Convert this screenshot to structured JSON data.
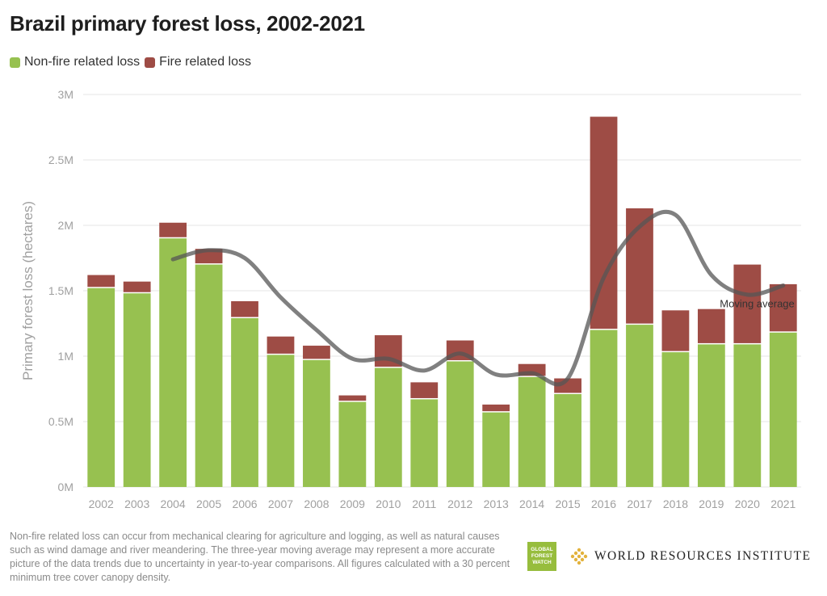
{
  "title": "Brazil primary forest loss, 2002-2021",
  "legend": {
    "non_fire_label": "Non-fire related loss",
    "fire_label": "Fire related loss"
  },
  "colors": {
    "non_fire": "#97c150",
    "fire": "#9e4c45",
    "moving_average": "#555555",
    "grid": "#e6e6e6",
    "axis_text": "#a0a0a0"
  },
  "chart_data": {
    "type": "bar",
    "stacked": true,
    "ylabel": "Primary forest loss (hectares)",
    "ylim": [
      0,
      3000000
    ],
    "yticks": [
      0,
      500000,
      1000000,
      1500000,
      2000000,
      2500000,
      3000000
    ],
    "ytick_labels": [
      "0M",
      "0.5M",
      "1M",
      "1.5M",
      "2M",
      "2.5M",
      "3M"
    ],
    "categories": [
      "2002",
      "2003",
      "2004",
      "2005",
      "2006",
      "2007",
      "2008",
      "2009",
      "2010",
      "2011",
      "2012",
      "2013",
      "2014",
      "2015",
      "2016",
      "2017",
      "2018",
      "2019",
      "2020",
      "2021"
    ],
    "series": [
      {
        "name": "Non-fire related loss",
        "values": [
          1520000,
          1480000,
          1900000,
          1700000,
          1290000,
          1010000,
          970000,
          650000,
          910000,
          670000,
          960000,
          570000,
          840000,
          710000,
          1200000,
          1240000,
          1030000,
          1090000,
          1090000,
          1180000
        ]
      },
      {
        "name": "Fire related loss",
        "values": [
          100000,
          90000,
          120000,
          120000,
          130000,
          140000,
          110000,
          50000,
          250000,
          130000,
          160000,
          60000,
          100000,
          120000,
          1630000,
          890000,
          320000,
          270000,
          610000,
          370000
        ]
      }
    ],
    "moving_average": {
      "label": "Moving average",
      "x": [
        "2004",
        "2005",
        "2006",
        "2007",
        "2008",
        "2009",
        "2010",
        "2011",
        "2012",
        "2013",
        "2014",
        "2015",
        "2016",
        "2017",
        "2018",
        "2019",
        "2020",
        "2021"
      ],
      "values": [
        1740000,
        1810000,
        1750000,
        1450000,
        1200000,
        980000,
        980000,
        890000,
        1020000,
        860000,
        870000,
        830000,
        1600000,
        1990000,
        2080000,
        1620000,
        1470000,
        1540000
      ]
    }
  },
  "footnote": "Non-fire related loss can occur from mechanical clearing for agriculture and logging, as well as natural causes such as wind damage and river meandering. The three-year moving average may represent a more accurate picture of the data trends due to uncertainty in year-to-year comparisons. All figures calculated with a 30 percent minimum tree cover canopy density.",
  "logos": {
    "gfw_lines": [
      "GLOBAL",
      "FOREST",
      "WATCH"
    ],
    "wri": "WORLD RESOURCES INSTITUTE"
  }
}
